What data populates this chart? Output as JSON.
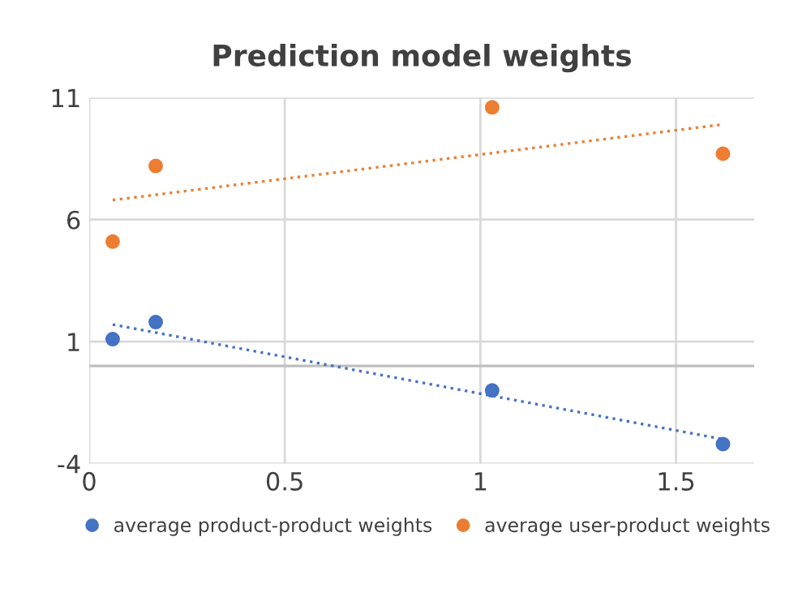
{
  "chart_data": {
    "type": "scatter",
    "title": "Prediction model weights",
    "series": [
      {
        "name": "average product-product weights",
        "color": "#4472c4",
        "x": [
          0.06,
          0.17,
          1.03,
          1.62
        ],
        "values": [
          1.1,
          1.8,
          -1.0,
          -3.2
        ]
      },
      {
        "name": "average user-product weights",
        "color": "#ed7d31",
        "x": [
          0.06,
          0.17,
          1.03,
          1.62
        ],
        "values": [
          5.1,
          8.2,
          10.6,
          8.7
        ]
      },
      {
        "type": "line",
        "color": "#4472c4",
        "line_style": "dotted",
        "marker": "none",
        "x": [
          0.06,
          1.62
        ],
        "values": [
          1.7,
          -3.0
        ]
      },
      {
        "type": "line",
        "color": "#ed7d31",
        "line_style": "dotted",
        "marker": "none",
        "x": [
          0.06,
          1.62
        ],
        "values": [
          6.8,
          9.9
        ]
      }
    ],
    "xlim": [
      0,
      1.7
    ],
    "xticks": [
      0,
      0.5,
      1,
      1.5
    ],
    "ylim": [
      -4,
      11
    ],
    "yticks": [
      -4,
      1,
      6,
      11
    ],
    "ref_lines": [
      {
        "axis": "y",
        "value": 0,
        "color": "#bfbfbf"
      }
    ],
    "grid": true,
    "legend": "bottom",
    "marker": "circle"
  }
}
